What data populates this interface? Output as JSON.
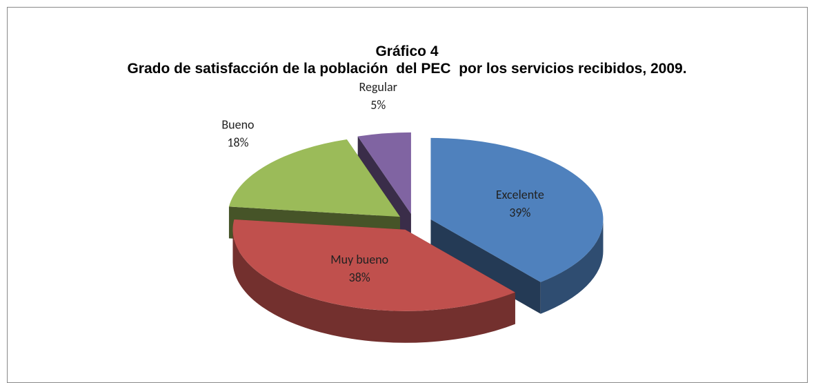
{
  "chart_data": {
    "type": "pie3d",
    "title": "Gráfico 4",
    "subtitle": "Grado de satisfacción de la población  del PEC  por los servicios recibidos, 2009.",
    "categories": [
      "Excelente",
      "Muy bueno",
      "Bueno",
      "Regular"
    ],
    "values": [
      39,
      38,
      18,
      5
    ],
    "value_labels": [
      "39%",
      "38%",
      "18%",
      "5%"
    ],
    "colors": [
      "#4f81bd",
      "#c0504d",
      "#9bbb59",
      "#8064a2"
    ]
  }
}
